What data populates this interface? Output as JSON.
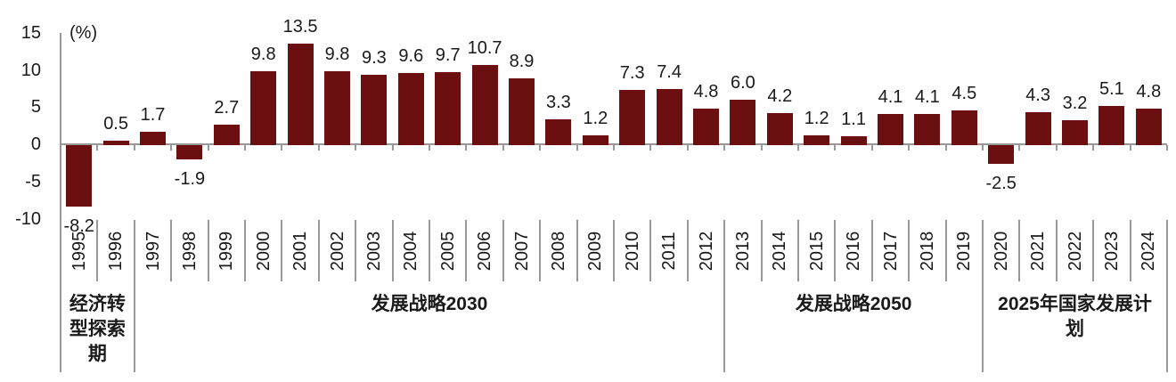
{
  "chart_data": {
    "type": "bar",
    "title": "",
    "unit_label": "(%)",
    "categories": [
      "1995",
      "1996",
      "1997",
      "1998",
      "1999",
      "2000",
      "2001",
      "2002",
      "2003",
      "2004",
      "2005",
      "2006",
      "2007",
      "2008",
      "2009",
      "2010",
      "2011",
      "2012",
      "2013",
      "2014",
      "2015",
      "2016",
      "2017",
      "2018",
      "2019",
      "2020",
      "2021",
      "2022",
      "2023",
      "2024"
    ],
    "values": [
      -8.2,
      0.5,
      1.7,
      -1.9,
      2.7,
      9.8,
      13.5,
      9.8,
      9.3,
      9.6,
      9.7,
      10.7,
      8.9,
      3.3,
      1.2,
      7.3,
      7.4,
      4.8,
      6.0,
      4.2,
      1.2,
      1.1,
      4.1,
      4.1,
      4.5,
      -2.5,
      4.3,
      3.2,
      5.1,
      4.8
    ],
    "value_label_decimals": 1,
    "groups": [
      {
        "label": "经济转\n型探索\n期",
        "span": [
          0,
          1
        ]
      },
      {
        "label": "发展战略2030",
        "span": [
          2,
          17
        ]
      },
      {
        "label": "发展战略2050",
        "span": [
          18,
          24
        ]
      },
      {
        "label": "2025年国家发展计\n划",
        "span": [
          25,
          29
        ]
      }
    ],
    "y_axis": {
      "ticks": [
        15,
        10,
        5,
        0,
        -5,
        -10
      ],
      "min": -10,
      "max": 15,
      "grid": false
    },
    "legend": null,
    "colors": {
      "bar": "#6B0F10",
      "axis": "#999999",
      "text": "#1A1A1A"
    }
  }
}
